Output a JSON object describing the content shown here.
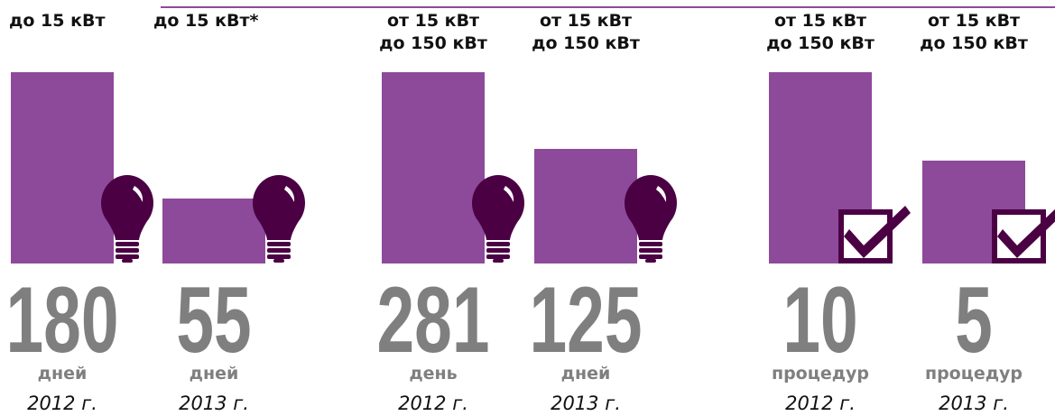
{
  "items": [
    {
      "label": [
        "до 15 кВт"
      ],
      "value": "180",
      "unit": "дней",
      "year": "2012 г."
    },
    {
      "label": [
        "до 15 кВт*"
      ],
      "value": "55",
      "unit": "дней",
      "year": "2013 г."
    },
    {
      "label": [
        "от 15 кВт",
        "до 150 кВт"
      ],
      "value": "281",
      "unit": "день",
      "year": "2012 г."
    },
    {
      "label": [
        "от 15 кВт",
        "до 150 кВт"
      ],
      "value": "125",
      "unit": "дней",
      "year": "2013 г."
    },
    {
      "label": [
        "от 15 кВт",
        "до 150 кВт"
      ],
      "value": "10",
      "unit": "процедур",
      "year": "2012 г."
    },
    {
      "label": [
        "от 15 кВт",
        "до 150 кВт"
      ],
      "value": "5",
      "unit": "процедур",
      "year": "2013 г."
    }
  ]
}
